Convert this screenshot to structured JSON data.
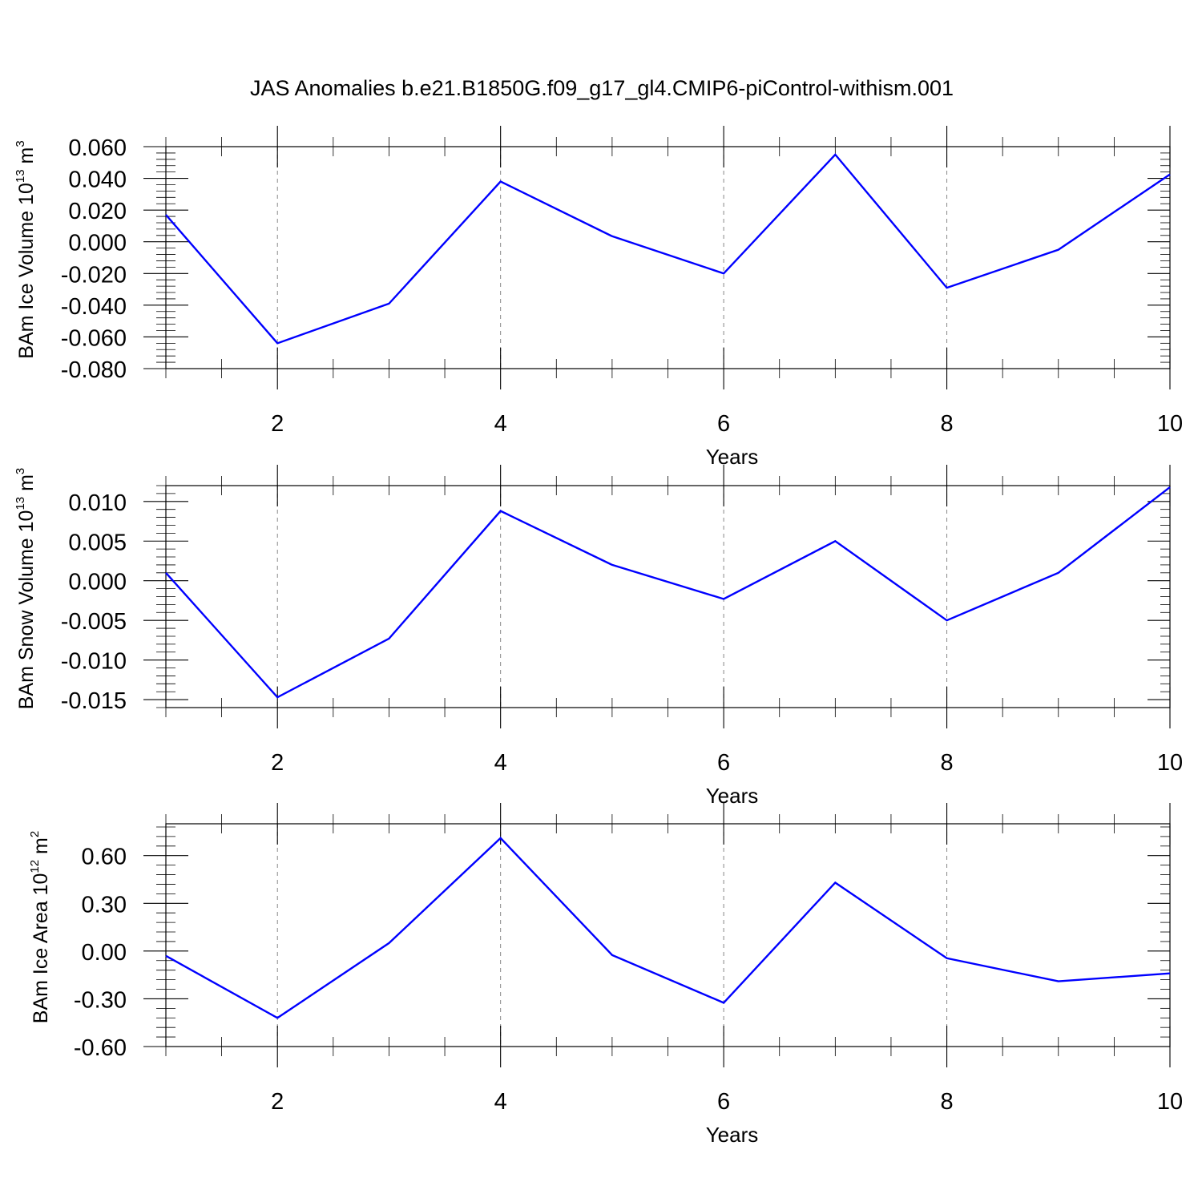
{
  "title": "JAS Anomalies b.e21.B1850G.f09_g17_gl4.CMIP6-piControl-withism.001",
  "chart_data": [
    {
      "type": "line",
      "ylabel": "BAm Ice Volume 10",
      "ylabel_exp": "13",
      "ylabel_unit": " m",
      "ylabel_unit_exp": "3",
      "xlabel": "Years",
      "xlim": [
        1,
        10
      ],
      "ylim": [
        -0.08,
        0.06
      ],
      "xticks": [
        2,
        4,
        6,
        8,
        10
      ],
      "xtick_labels": [
        "2",
        "4",
        "6",
        "8",
        "10"
      ],
      "yticks": [
        -0.08,
        -0.06,
        -0.04,
        -0.02,
        0.0,
        0.02,
        0.04,
        0.06
      ],
      "ytick_labels": [
        "-0.080",
        "-0.060",
        "-0.040",
        "-0.020",
        "0.000",
        "0.020",
        "0.040",
        "0.060"
      ],
      "grid": "x dashed",
      "series": [
        {
          "color": "#0000ff",
          "x": [
            1,
            2,
            3,
            4,
            5,
            6,
            7,
            8,
            9,
            10
          ],
          "values": [
            0.017,
            -0.064,
            -0.039,
            0.038,
            0.0035,
            -0.02,
            0.055,
            -0.029,
            -0.005,
            0.0425
          ]
        }
      ]
    },
    {
      "type": "line",
      "ylabel": "BAm Snow Volume 10",
      "ylabel_exp": "13",
      "ylabel_unit": " m",
      "ylabel_unit_exp": "3",
      "xlabel": "Years",
      "xlim": [
        1,
        10
      ],
      "ylim": [
        -0.016,
        0.012
      ],
      "xticks": [
        2,
        4,
        6,
        8,
        10
      ],
      "xtick_labels": [
        "2",
        "4",
        "6",
        "8",
        "10"
      ],
      "yticks": [
        -0.015,
        -0.01,
        -0.005,
        0.0,
        0.005,
        0.01
      ],
      "ytick_labels": [
        "-0.015",
        "-0.010",
        "-0.005",
        "0.000",
        "0.005",
        "0.010"
      ],
      "grid": "x dashed",
      "series": [
        {
          "color": "#0000ff",
          "x": [
            1,
            2,
            3,
            4,
            5,
            6,
            7,
            8,
            9,
            10
          ],
          "values": [
            0.001,
            -0.0147,
            -0.0073,
            0.0088,
            0.002,
            -0.0023,
            0.005,
            -0.005,
            0.001,
            0.0118
          ]
        }
      ]
    },
    {
      "type": "line",
      "ylabel": "BAm Ice Area 10",
      "ylabel_exp": "12",
      "ylabel_unit": " m",
      "ylabel_unit_exp": "2",
      "xlabel": "Years",
      "xlim": [
        1,
        10
      ],
      "ylim": [
        -0.6,
        0.8
      ],
      "xticks": [
        2,
        4,
        6,
        8,
        10
      ],
      "xtick_labels": [
        "2",
        "4",
        "6",
        "8",
        "10"
      ],
      "yticks": [
        -0.6,
        -0.3,
        0.0,
        0.3,
        0.6
      ],
      "ytick_labels": [
        "-0.60",
        "-0.30",
        "0.00",
        "0.30",
        "0.60"
      ],
      "grid": "x dashed",
      "series": [
        {
          "color": "#0000ff",
          "x": [
            1,
            2,
            3,
            4,
            5,
            6,
            7,
            8,
            9,
            10
          ],
          "values": [
            -0.03,
            -0.42,
            0.05,
            0.71,
            -0.025,
            -0.325,
            0.43,
            -0.045,
            -0.19,
            -0.14
          ]
        }
      ]
    }
  ]
}
